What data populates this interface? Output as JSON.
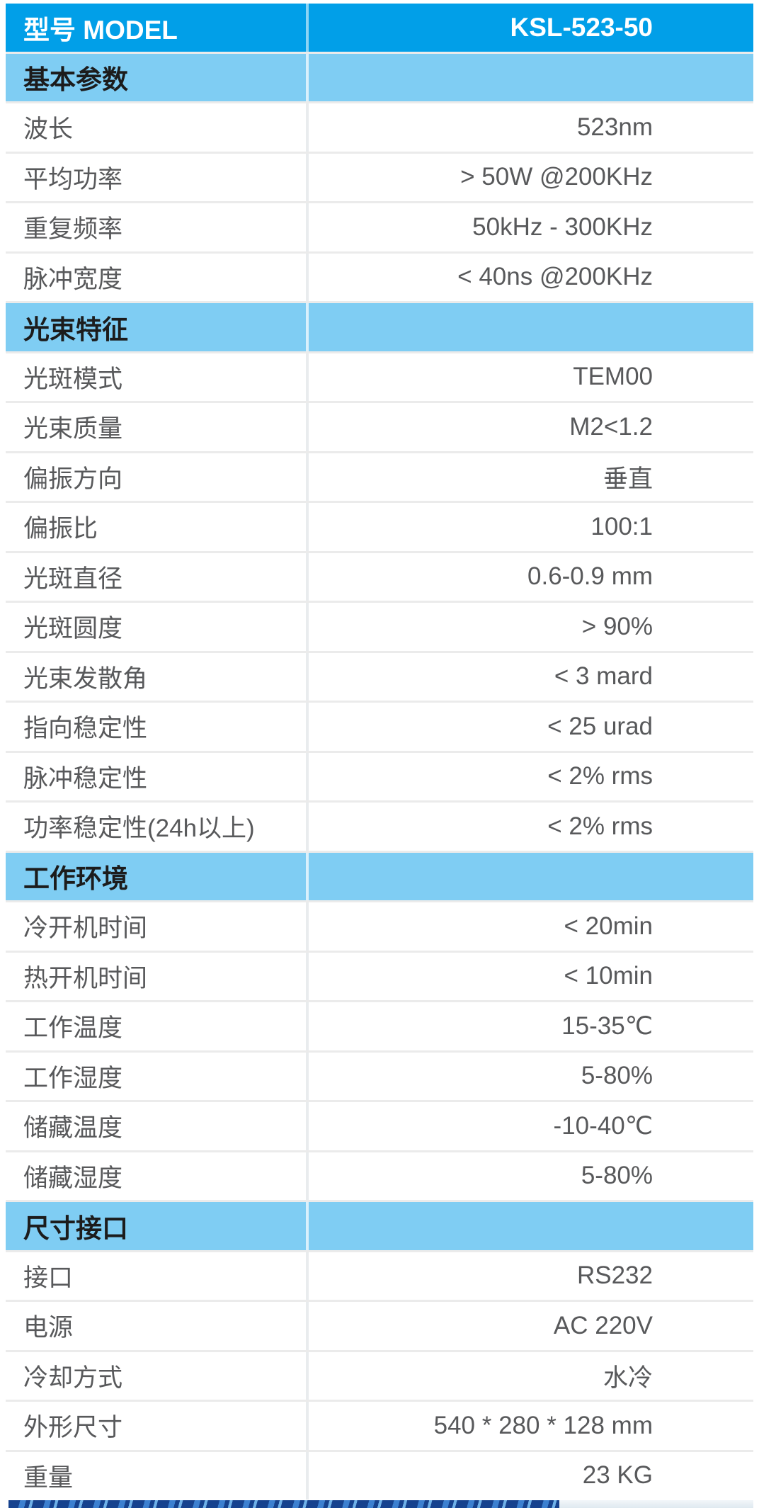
{
  "product": {
    "model_label": "型号 MODEL",
    "model_value": "KSL-523-50"
  },
  "colors": {
    "header_blue": "#019fe8",
    "section_light_blue": "#7fcdf3",
    "data_text_gray": "#58595b",
    "row_gap_gray": "#ebebeb",
    "footer_stripe_navy": "#16428e",
    "footer_stripe_blue": "#3c80d0"
  },
  "table": {
    "rows": [
      {
        "type": "header",
        "label": "型号 MODEL",
        "value": "KSL-523-50"
      },
      {
        "type": "section",
        "label": "基本参数",
        "value": ""
      },
      {
        "type": "data",
        "label": "波长",
        "value": "523nm"
      },
      {
        "type": "data",
        "label": "平均功率",
        "value": "> 50W @200KHz"
      },
      {
        "type": "data",
        "label": "重复频率",
        "value": "50kHz - 300KHz"
      },
      {
        "type": "data",
        "label": "脉冲宽度",
        "value": "< 40ns @200KHz"
      },
      {
        "type": "section",
        "label": "光束特征",
        "value": ""
      },
      {
        "type": "data",
        "label": "光斑模式",
        "value": "TEM00"
      },
      {
        "type": "data",
        "label": "光束质量",
        "value": "M2<1.2"
      },
      {
        "type": "data",
        "label": "偏振方向",
        "value": "垂直"
      },
      {
        "type": "data",
        "label": "偏振比",
        "value": "100:1"
      },
      {
        "type": "data",
        "label": "光斑直径",
        "value": "0.6-0.9 mm"
      },
      {
        "type": "data",
        "label": "光斑圆度",
        "value": "> 90%"
      },
      {
        "type": "data",
        "label": "光束发散角",
        "value": "< 3 mard"
      },
      {
        "type": "data",
        "label": "指向稳定性",
        "value": "< 25 urad"
      },
      {
        "type": "data",
        "label": "脉冲稳定性",
        "value": "< 2% rms"
      },
      {
        "type": "data",
        "label": "功率稳定性(24h以上)",
        "value": "< 2% rms"
      },
      {
        "type": "section",
        "label": "工作环境",
        "value": ""
      },
      {
        "type": "data",
        "label": "冷开机时间",
        "value": "< 20min"
      },
      {
        "type": "data",
        "label": "热开机时间",
        "value": "< 10min"
      },
      {
        "type": "data",
        "label": "工作温度",
        "value": "15-35℃"
      },
      {
        "type": "data",
        "label": "工作湿度",
        "value": "5-80%"
      },
      {
        "type": "data",
        "label": "储藏温度",
        "value": "-10-40℃"
      },
      {
        "type": "data",
        "label": "储藏湿度",
        "value": "5-80%"
      },
      {
        "type": "section",
        "label": "尺寸接口",
        "value": ""
      },
      {
        "type": "data",
        "label": "接口",
        "value": "RS232"
      },
      {
        "type": "data",
        "label": "电源",
        "value": "AC 220V"
      },
      {
        "type": "data",
        "label": "冷却方式",
        "value": "水冷"
      },
      {
        "type": "data",
        "label": "外形尺寸",
        "value": "540 * 280 * 128 mm"
      },
      {
        "type": "data",
        "label": "重量",
        "value": "23 KG"
      }
    ]
  }
}
